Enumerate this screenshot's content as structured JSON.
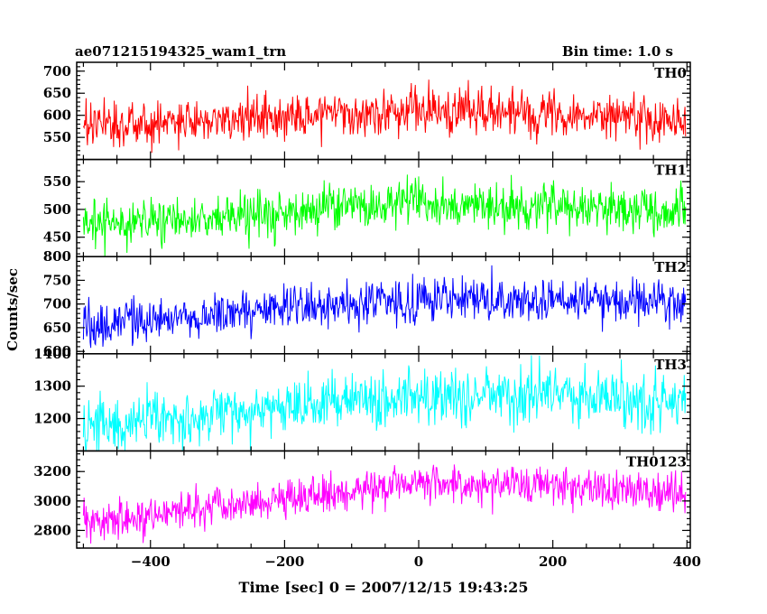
{
  "header": {
    "title": "ae071215194325_wam1_trn",
    "bin_time": "Bin time: 1.0 s"
  },
  "chart_data": {
    "type": "line",
    "xlabel": "Time [sec] 0 = 2007/12/15 19:43:25",
    "ylabel": "Counts/sec",
    "xlim": [
      -510,
      405
    ],
    "x_ticks": [
      -400,
      -200,
      0,
      200,
      400
    ],
    "x_tick_labels": [
      "−400",
      "−200",
      "0",
      "200",
      "400"
    ],
    "x_range": [
      -500,
      398
    ],
    "bin_time_s": 1.0,
    "grid": false,
    "panels": [
      {
        "name": "TH0",
        "color": "#ff0000",
        "ylim": [
          500,
          720
        ],
        "yticks": [
          550,
          600,
          650,
          700
        ],
        "ytick_labels": [
          "550",
          "600",
          "650",
          "700"
        ],
        "trend": {
          "x": [
            -500,
            -300,
            -200,
            -100,
            0,
            100,
            200,
            300,
            398
          ],
          "y": [
            578,
            588,
            595,
            600,
            610,
            605,
            600,
            598,
            590
          ]
        },
        "amplitude": 45
      },
      {
        "name": "TH1",
        "color": "#00ff00",
        "ylim": [
          415,
          590
        ],
        "yticks": [
          450,
          500,
          550
        ],
        "ytick_labels": [
          "450",
          "500",
          "550"
        ],
        "trend": {
          "x": [
            -500,
            -400,
            -300,
            -200,
            -100,
            0,
            100,
            200,
            300,
            398
          ],
          "y": [
            470,
            478,
            488,
            495,
            505,
            510,
            508,
            505,
            500,
            498
          ]
        },
        "amplitude": 35
      },
      {
        "name": "TH2",
        "color": "#0000ff",
        "ylim": [
          595,
          800
        ],
        "yticks": [
          600,
          650,
          700,
          750,
          800
        ],
        "ytick_labels": [
          "600",
          "650",
          "700",
          "750",
          "800"
        ],
        "trend": {
          "x": [
            -500,
            -400,
            -300,
            -200,
            -100,
            0,
            100,
            200,
            300,
            398
          ],
          "y": [
            660,
            665,
            680,
            690,
            705,
            712,
            710,
            708,
            705,
            700
          ]
        },
        "amplitude": 40
      },
      {
        "name": "TH3",
        "color": "#00ffff",
        "ylim": [
          1100,
          1400
        ],
        "yticks": [
          1200,
          1300,
          1400
        ],
        "ytick_labels": [
          "1200",
          "1300",
          "1400"
        ],
        "trend": {
          "x": [
            -500,
            -400,
            -300,
            -200,
            -100,
            0,
            100,
            200,
            300,
            398
          ],
          "y": [
            1175,
            1190,
            1215,
            1240,
            1255,
            1265,
            1270,
            1268,
            1262,
            1255
          ]
        },
        "amplitude": 70
      },
      {
        "name": "TH0123",
        "color": "#ff00ff",
        "ylim": [
          2680,
          3340
        ],
        "yticks": [
          2800,
          3000,
          3200
        ],
        "ytick_labels": [
          "2800",
          "3000",
          "3200"
        ],
        "trend": {
          "x": [
            -500,
            -400,
            -300,
            -200,
            -100,
            0,
            100,
            200,
            300,
            398
          ],
          "y": [
            2860,
            2900,
            2960,
            3020,
            3075,
            3110,
            3120,
            3110,
            3080,
            3050
          ]
        },
        "amplitude": 110
      }
    ]
  }
}
